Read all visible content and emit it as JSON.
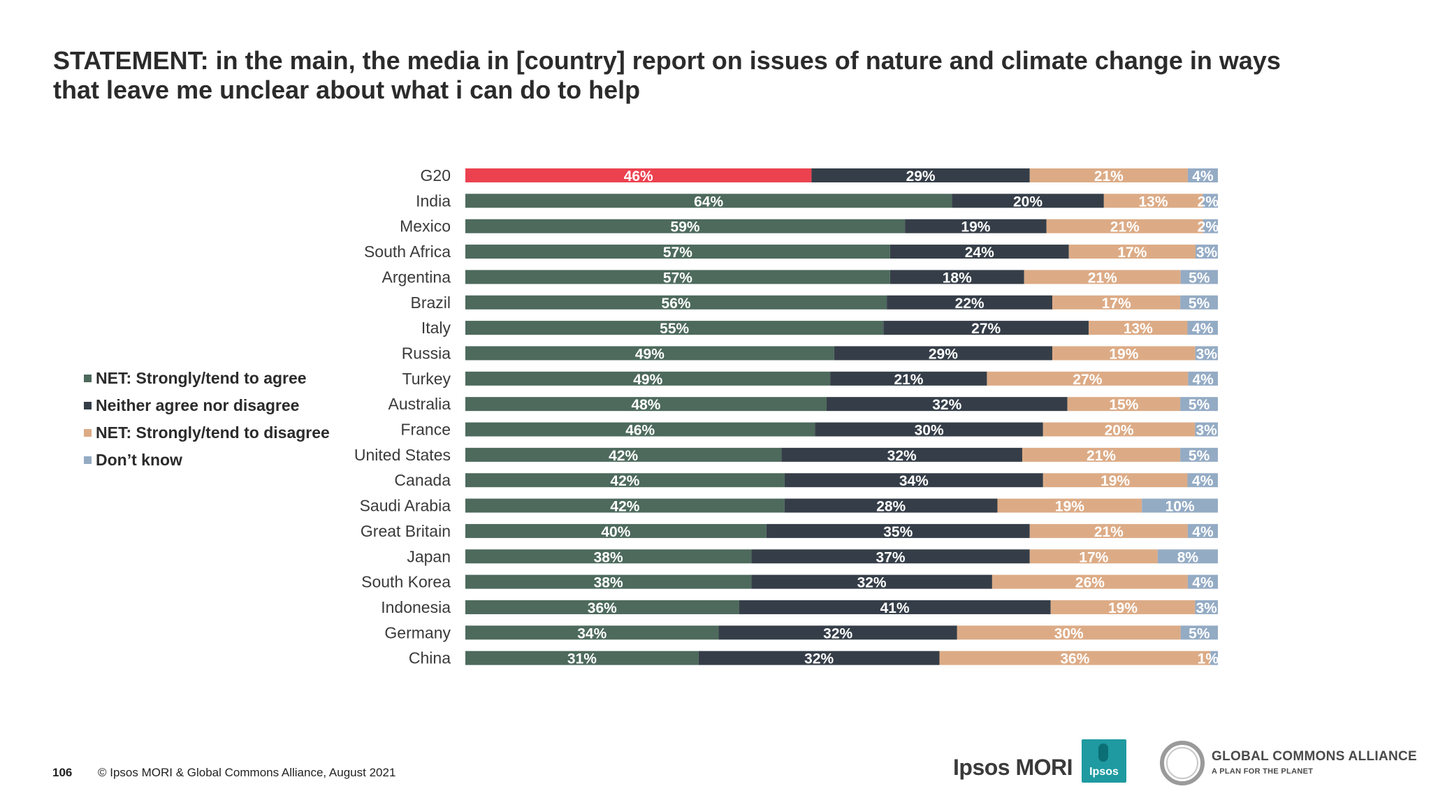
{
  "header": {
    "title_line1": "STATEMENT: in the main, the media in [country] report on issues of nature and climate change in ways",
    "title_line2": "that leave me unclear about what i can do to help"
  },
  "colors": {
    "agree": "#4d6a5c",
    "agree_g20": "#ec4250",
    "neither": "#353e48",
    "disagree": "#dcab86",
    "dont_know": "#94abc4"
  },
  "chart_data": {
    "type": "bar",
    "orientation": "horizontal",
    "stacked": true,
    "categories": [
      "G20",
      "India",
      "Mexico",
      "South Africa",
      "Argentina",
      "Brazil",
      "Italy",
      "Russia",
      "Turkey",
      "Australia",
      "France",
      "United States",
      "Canada",
      "Saudi Arabia",
      "Great Britain",
      "Japan",
      "South Korea",
      "Indonesia",
      "Germany",
      "China"
    ],
    "series": [
      {
        "name": "NET: Strongly/tend to agree",
        "values": [
          46,
          64,
          59,
          57,
          57,
          56,
          55,
          49,
          49,
          48,
          46,
          42,
          42,
          42,
          40,
          38,
          38,
          36,
          34,
          31
        ]
      },
      {
        "name": "Neither agree nor disagree",
        "values": [
          29,
          20,
          19,
          24,
          18,
          22,
          27,
          29,
          21,
          32,
          30,
          32,
          34,
          28,
          35,
          37,
          32,
          41,
          32,
          32
        ]
      },
      {
        "name": "NET: Strongly/tend to disagree",
        "values": [
          21,
          13,
          21,
          17,
          21,
          17,
          13,
          19,
          27,
          15,
          20,
          21,
          19,
          19,
          21,
          17,
          26,
          19,
          30,
          36
        ]
      },
      {
        "name": "Don’t know",
        "values": [
          4,
          2,
          2,
          3,
          5,
          5,
          4,
          3,
          4,
          5,
          3,
          5,
          4,
          10,
          4,
          8,
          4,
          3,
          5,
          1
        ]
      }
    ],
    "value_suffix": "%",
    "legend_position": "left",
    "highlight_category": "G20"
  },
  "legend": {
    "items": [
      {
        "label": "NET: Strongly/tend to agree",
        "color": "#4d6a5c"
      },
      {
        "label": "Neither agree nor disagree",
        "color": "#353e48"
      },
      {
        "label": "NET: Strongly/tend to disagree",
        "color": "#dcab86"
      },
      {
        "label": "Don’t know",
        "color": "#94abc4"
      }
    ]
  },
  "footer": {
    "page_number": "106",
    "copyright": "© Ipsos MORI & Global Commons Alliance, August 2021"
  },
  "logos": {
    "ipsos_mori": "Ipsos MORI",
    "ipsos_badge": "Ipsos",
    "gca_title": "GLOBAL COMMONS ALLIANCE",
    "gca_subtitle": "A PLAN FOR THE PLANET"
  }
}
